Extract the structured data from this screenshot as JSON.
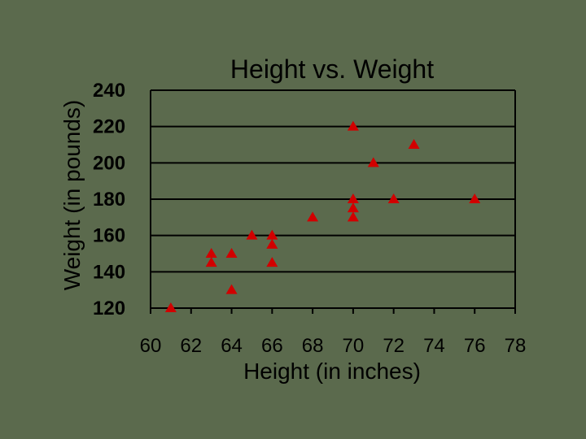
{
  "chart_data": {
    "type": "scatter",
    "title": "Height vs. Weight",
    "xlabel": "Height (in inches)",
    "ylabel": "Weight (in pounds)",
    "xlim": [
      60,
      78
    ],
    "ylim": [
      120,
      240
    ],
    "xticks": [
      "60",
      "62",
      "64",
      "66",
      "68",
      "70",
      "72",
      "74",
      "76",
      "78"
    ],
    "yticks": [
      "120",
      "140",
      "160",
      "180",
      "200",
      "220",
      "240"
    ],
    "grid": "horizontal",
    "marker": "triangle",
    "marker_color": "#d10000",
    "background_color": "#5b6a4d",
    "points": [
      {
        "x": 61,
        "y": 120
      },
      {
        "x": 63,
        "y": 150
      },
      {
        "x": 63,
        "y": 145
      },
      {
        "x": 64,
        "y": 150
      },
      {
        "x": 64,
        "y": 130
      },
      {
        "x": 65,
        "y": 160
      },
      {
        "x": 66,
        "y": 160
      },
      {
        "x": 66,
        "y": 155
      },
      {
        "x": 66,
        "y": 145
      },
      {
        "x": 68,
        "y": 170
      },
      {
        "x": 70,
        "y": 220
      },
      {
        "x": 70,
        "y": 180
      },
      {
        "x": 70,
        "y": 175
      },
      {
        "x": 70,
        "y": 170
      },
      {
        "x": 71,
        "y": 200
      },
      {
        "x": 72,
        "y": 180
      },
      {
        "x": 73,
        "y": 210
      },
      {
        "x": 76,
        "y": 180
      }
    ]
  }
}
